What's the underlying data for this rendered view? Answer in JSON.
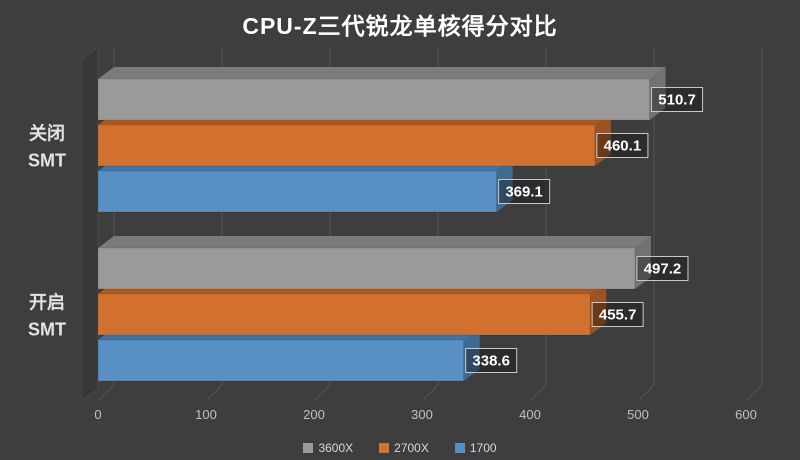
{
  "title": "CPU-Z三代锐龙单核得分对比",
  "colors": {
    "background": "#3E3E3E",
    "grid_line": "#545454",
    "wall": "#383838",
    "title_text": "#FFFFFF",
    "category_text": "#E4E4E4",
    "tick_text": "#C0C0C0",
    "legend_text": "#D9D9D9",
    "value_label_text": "#FFFFFF",
    "value_label_border": "#C9C9C9",
    "value_label_fill": "rgba(12,12,12,0.35)"
  },
  "chart_data": {
    "type": "bar",
    "orientation": "horizontal",
    "style": "3d",
    "title": "CPU-Z三代锐龙单核得分对比",
    "categories": [
      "关闭\nSMT",
      "开启\nSMT"
    ],
    "series": [
      {
        "name": "3600X",
        "color": "#9A9A9A",
        "values": [
          510.7,
          497.2
        ]
      },
      {
        "name": "2700X",
        "color": "#D2702F",
        "values": [
          460.1,
          455.7
        ]
      },
      {
        "name": "1700",
        "color": "#588FC5",
        "values": [
          369.1,
          338.6
        ]
      }
    ],
    "x_axis": {
      "min": 0,
      "max": 600,
      "ticks": [
        0,
        100,
        200,
        300,
        400,
        500,
        600
      ]
    },
    "legend": {
      "position": "bottom",
      "entries": [
        "3600X",
        "2700X",
        "1700"
      ]
    },
    "value_labels_shown": true,
    "grid": "vertical-on-back-wall"
  }
}
